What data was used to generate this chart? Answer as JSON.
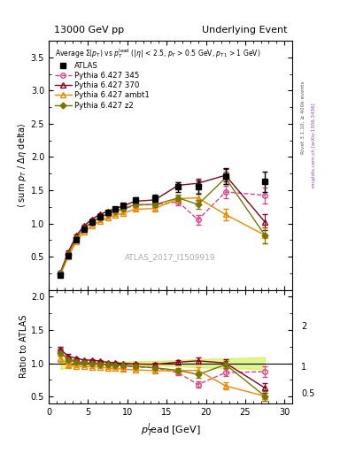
{
  "title_left": "13000 GeV pp",
  "title_right": "Underlying Event",
  "ylabel_main": "<sum p_T / Delta eta delta>",
  "ylabel_ratio": "Ratio to ATLAS",
  "annotation": "ATLAS_2017_I1509919",
  "atlas_x": [
    1.5,
    2.5,
    3.5,
    4.5,
    5.5,
    6.5,
    7.5,
    8.5,
    9.5,
    11.0,
    13.5,
    16.5,
    19.0,
    22.5,
    27.5
  ],
  "atlas_y": [
    0.22,
    0.52,
    0.76,
    0.92,
    1.02,
    1.1,
    1.17,
    1.22,
    1.27,
    1.35,
    1.38,
    1.55,
    1.55,
    1.72,
    1.63
  ],
  "atlas_yerr": [
    0.02,
    0.03,
    0.03,
    0.03,
    0.03,
    0.03,
    0.03,
    0.03,
    0.03,
    0.04,
    0.05,
    0.07,
    0.1,
    0.12,
    0.15
  ],
  "p345_x": [
    1.5,
    2.5,
    3.5,
    4.5,
    5.5,
    6.5,
    7.5,
    8.5,
    9.5,
    11.0,
    13.5,
    16.5,
    19.0,
    22.5,
    27.5
  ],
  "p345_y": [
    0.265,
    0.555,
    0.785,
    0.935,
    1.025,
    1.095,
    1.145,
    1.185,
    1.215,
    1.275,
    1.285,
    1.325,
    1.055,
    1.475,
    1.425
  ],
  "p345_yerr": [
    0.01,
    0.015,
    0.015,
    0.015,
    0.015,
    0.015,
    0.015,
    0.015,
    0.02,
    0.025,
    0.035,
    0.05,
    0.07,
    0.09,
    0.12
  ],
  "p370_x": [
    1.5,
    2.5,
    3.5,
    4.5,
    5.5,
    6.5,
    7.5,
    8.5,
    9.5,
    11.0,
    13.5,
    16.5,
    19.0,
    22.5,
    27.5
  ],
  "p370_y": [
    0.265,
    0.575,
    0.815,
    0.965,
    1.065,
    1.135,
    1.185,
    1.225,
    1.265,
    1.335,
    1.355,
    1.575,
    1.605,
    1.725,
    1.025
  ],
  "p370_yerr": [
    0.01,
    0.015,
    0.015,
    0.015,
    0.015,
    0.015,
    0.015,
    0.015,
    0.02,
    0.025,
    0.035,
    0.05,
    0.07,
    0.09,
    0.12
  ],
  "pambt_x": [
    1.5,
    2.5,
    3.5,
    4.5,
    5.5,
    6.5,
    7.5,
    8.5,
    9.5,
    11.0,
    13.5,
    16.5,
    19.0,
    22.5,
    27.5
  ],
  "pambt_y": [
    0.235,
    0.505,
    0.725,
    0.875,
    0.965,
    1.035,
    1.085,
    1.125,
    1.155,
    1.215,
    1.225,
    1.375,
    1.385,
    1.135,
    0.825
  ],
  "pambt_yerr": [
    0.01,
    0.015,
    0.015,
    0.015,
    0.015,
    0.015,
    0.015,
    0.015,
    0.02,
    0.025,
    0.035,
    0.05,
    0.07,
    0.09,
    0.12
  ],
  "pz2_x": [
    1.5,
    2.5,
    3.5,
    4.5,
    5.5,
    6.5,
    7.5,
    8.5,
    9.5,
    11.0,
    13.5,
    16.5,
    19.0,
    22.5,
    27.5
  ],
  "pz2_y": [
    0.255,
    0.545,
    0.775,
    0.925,
    1.015,
    1.085,
    1.145,
    1.185,
    1.225,
    1.285,
    1.285,
    1.385,
    1.285,
    1.685,
    0.825
  ],
  "pz2_yerr": [
    0.01,
    0.015,
    0.015,
    0.015,
    0.015,
    0.015,
    0.015,
    0.015,
    0.02,
    0.025,
    0.035,
    0.05,
    0.07,
    0.09,
    0.12
  ],
  "color_atlas": "#000000",
  "color_p345": "#dd4488",
  "color_p370": "#880022",
  "color_pambt": "#ee8800",
  "color_pz2": "#777700",
  "xlim": [
    0,
    31
  ],
  "ylim_main": [
    0.0,
    3.75
  ],
  "ylim_ratio": [
    0.4,
    2.1
  ],
  "yticks_main": [
    0.5,
    1.0,
    1.5,
    2.0,
    2.5,
    3.0,
    3.5
  ],
  "yticks_ratio": [
    0.5,
    1.0,
    1.5,
    2.0
  ],
  "xticks": [
    0,
    5,
    10,
    15,
    20,
    25,
    30
  ]
}
